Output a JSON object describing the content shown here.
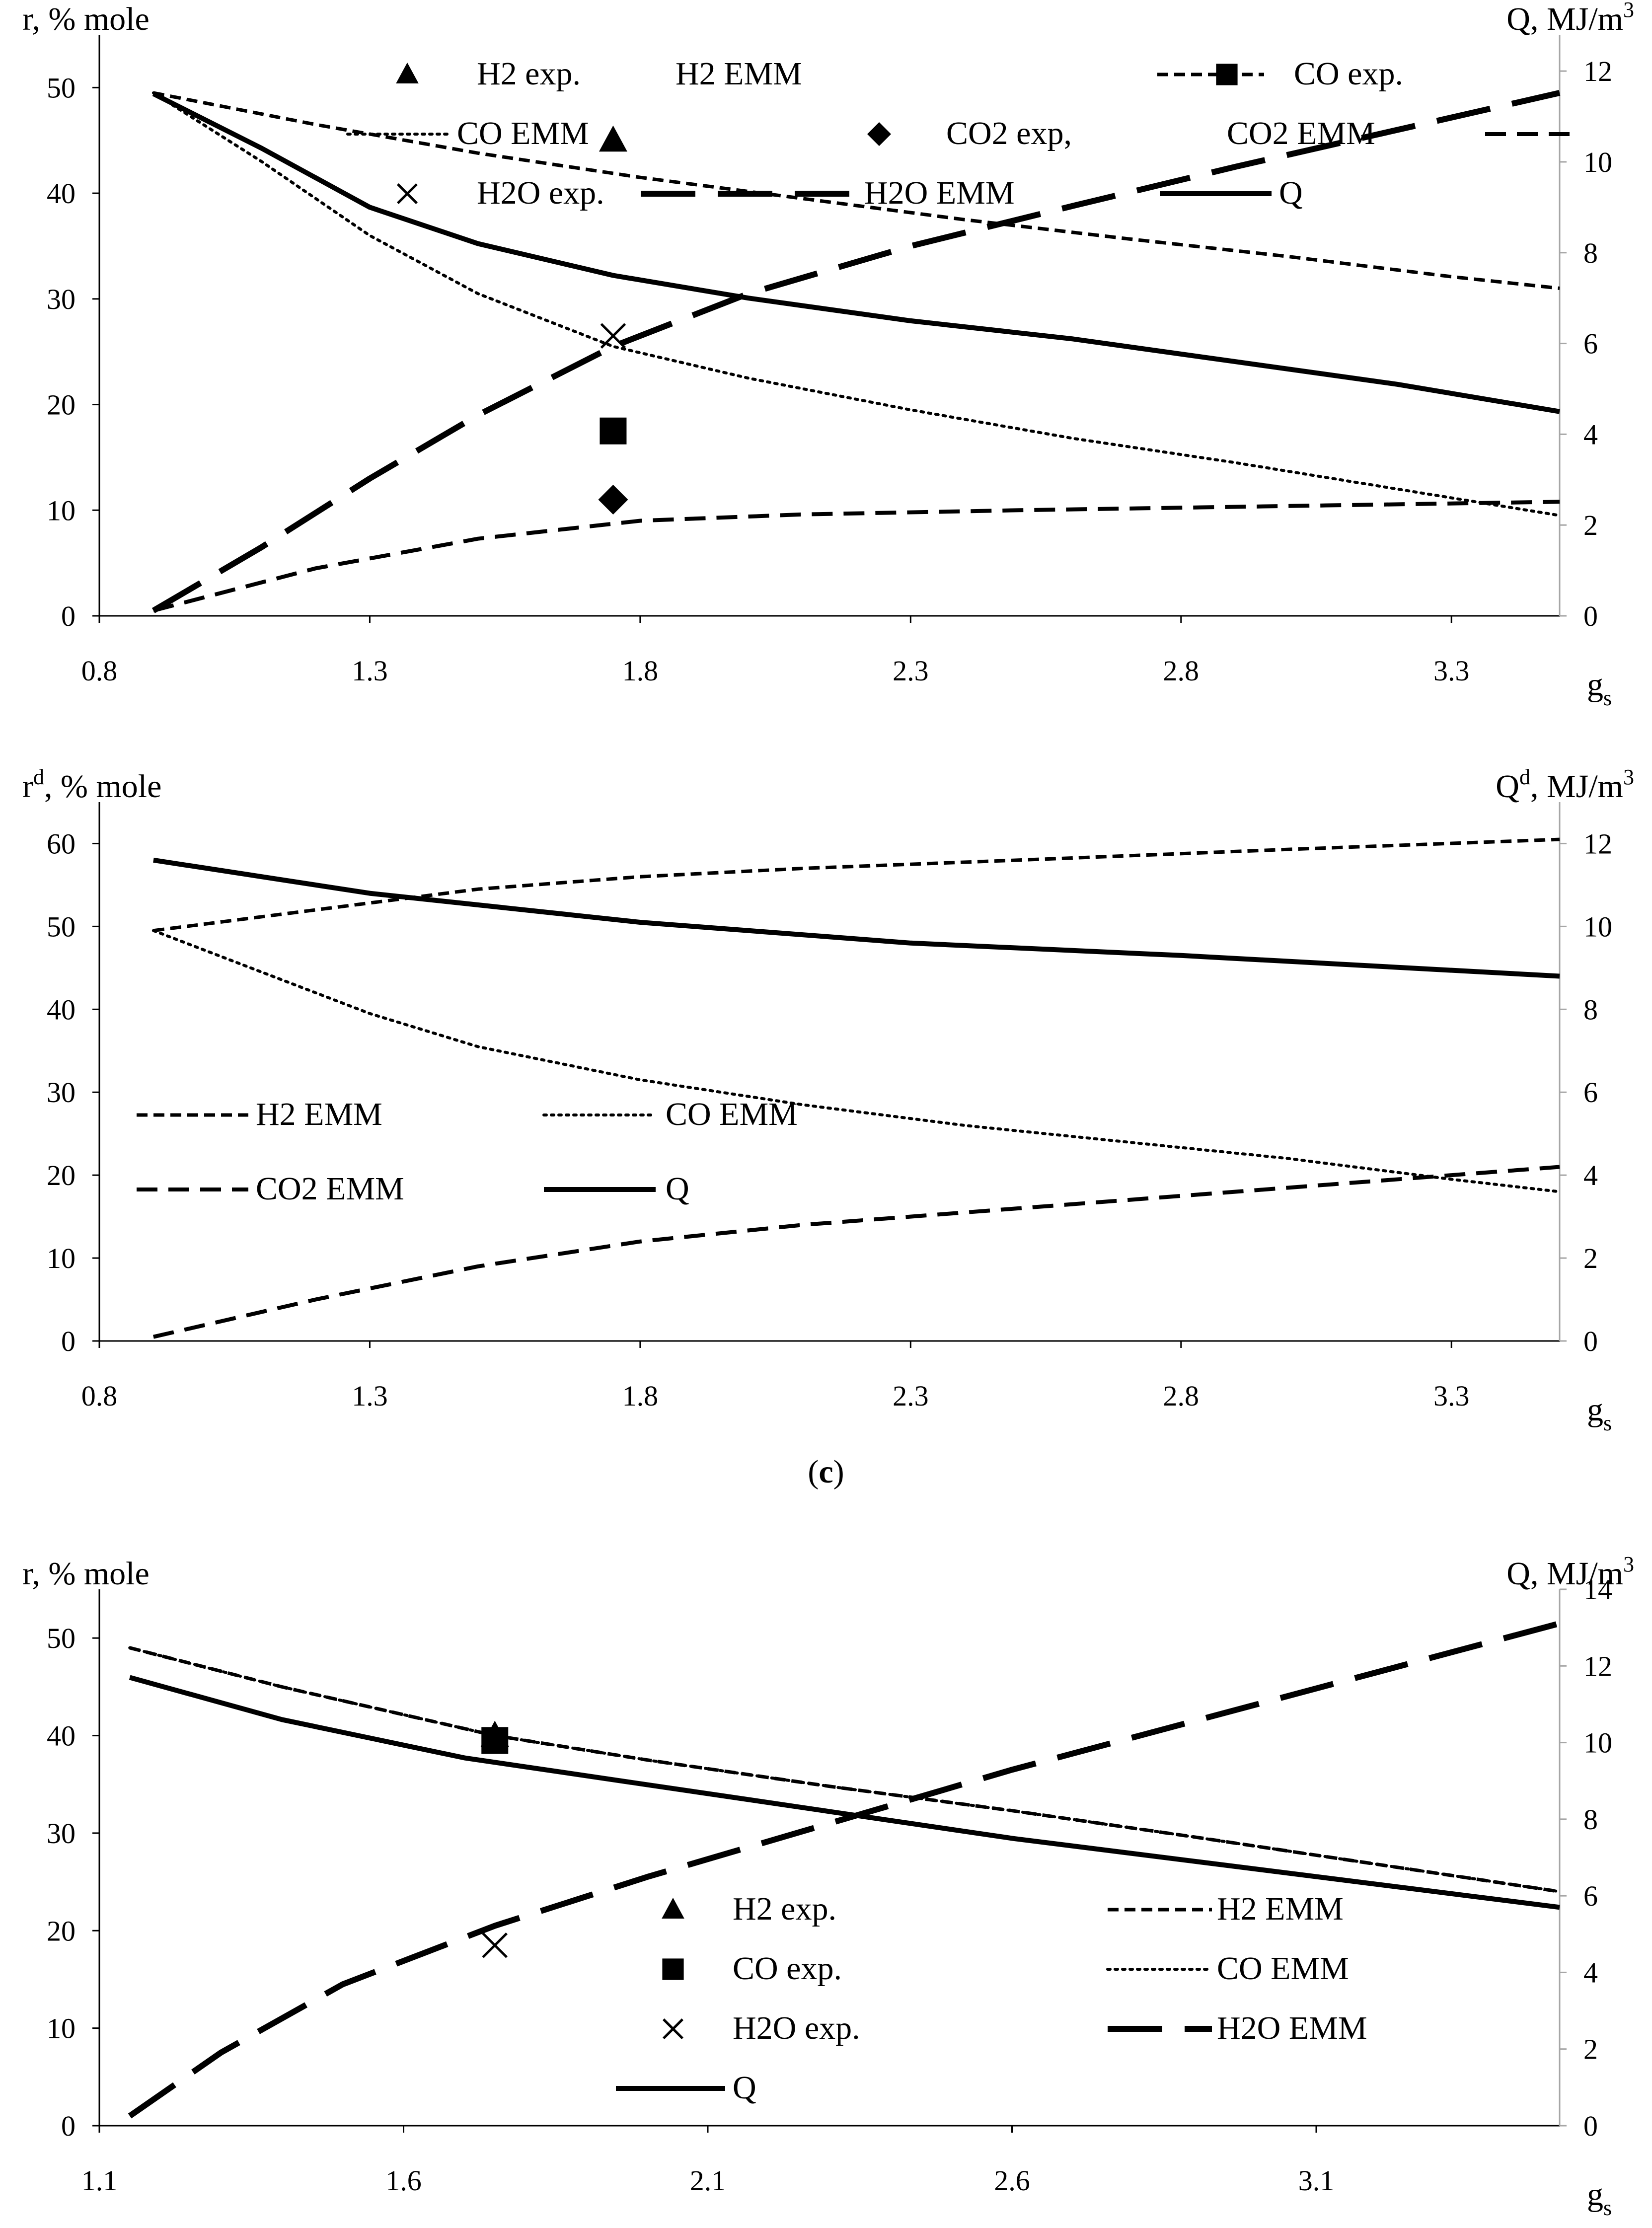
{
  "caption": {
    "open": "(",
    "letter": "c",
    "close": ")"
  },
  "chart_data": [
    {
      "type": "line",
      "id": "top",
      "xlabel": {
        "base": "g",
        "sub": "s"
      },
      "ylabel": {
        "base": "r",
        "sup": "",
        "rest": ", % mole"
      },
      "y2label": {
        "base": "Q",
        "sup": "",
        "rest": ", MJ/m",
        "sup2": "3"
      },
      "xlim": [
        0.8,
        3.5
      ],
      "ylim": [
        0,
        55
      ],
      "y2lim": [
        0,
        12.8
      ],
      "xticks": [
        "0.8",
        "1.3",
        "1.8",
        "2.3",
        "2.8",
        "3.3"
      ],
      "yticks": [
        "0",
        "10",
        "20",
        "30",
        "40",
        "50"
      ],
      "y2ticks": [
        "0",
        "2",
        "4",
        "6",
        "8",
        "10",
        "12"
      ],
      "series": [
        {
          "name": "H2 EMM",
          "style": "h2",
          "axis": "left",
          "x": [
            0.9,
            1.2,
            1.5,
            1.8,
            2.1,
            2.4,
            2.7,
            3.0,
            3.3,
            3.5
          ],
          "values": [
            49.5,
            46.5,
            43.8,
            41.5,
            39.5,
            37.5,
            35.7,
            34.0,
            32.1,
            31.0
          ]
        },
        {
          "name": "CO EMM",
          "style": "co",
          "axis": "left",
          "x": [
            0.9,
            1.1,
            1.3,
            1.5,
            1.75,
            2.0,
            2.3,
            2.6,
            2.9,
            3.2,
            3.5
          ],
          "values": [
            49.5,
            43.0,
            36.0,
            30.5,
            25.5,
            22.5,
            19.5,
            16.8,
            14.5,
            12.0,
            9.5
          ]
        },
        {
          "name": "CO2 EMM",
          "style": "co2",
          "axis": "left",
          "x": [
            0.9,
            1.2,
            1.5,
            1.8,
            2.1,
            2.5,
            3.0,
            3.5
          ],
          "values": [
            0.5,
            4.5,
            7.3,
            9.0,
            9.6,
            10.0,
            10.4,
            10.8
          ]
        },
        {
          "name": "H2O EMM",
          "style": "h2o",
          "axis": "left",
          "x": [
            0.9,
            1.1,
            1.3,
            1.5,
            1.75,
            2.0,
            2.3,
            2.6,
            2.9,
            3.2,
            3.5
          ],
          "values": [
            0.5,
            6.5,
            13.0,
            19.0,
            25.5,
            30.5,
            35.0,
            38.8,
            42.5,
            46.0,
            49.5
          ]
        },
        {
          "name": "Q",
          "style": "q",
          "axis": "right",
          "x": [
            0.9,
            1.1,
            1.3,
            1.5,
            1.75,
            2.0,
            2.3,
            2.6,
            2.9,
            3.2,
            3.5
          ],
          "values": [
            11.5,
            10.3,
            9.0,
            8.2,
            7.5,
            7.0,
            6.5,
            6.1,
            5.6,
            5.1,
            4.5
          ]
        }
      ],
      "points": [
        {
          "name": "H2 exp.",
          "marker": "triangle",
          "x": 1.75,
          "y": 45
        },
        {
          "name": "CO exp.",
          "marker": "square",
          "x": 1.75,
          "y": 17.5
        },
        {
          "name": "CO2 exp,",
          "marker": "diamond",
          "x": 1.75,
          "y": 11
        },
        {
          "name": "H2O exp.",
          "marker": "x",
          "x": 1.75,
          "y": 26.5
        }
      ],
      "legend": [
        {
          "label": "H2 exp.",
          "kind": "marker",
          "style": "triangle"
        },
        {
          "label": "H2 EMM",
          "kind": "line",
          "style": "h2"
        },
        {
          "label": "CO exp.",
          "kind": "marker",
          "style": "square"
        },
        {
          "label": "CO EMM",
          "kind": "line",
          "style": "co"
        },
        {
          "label": "CO2 exp,",
          "kind": "marker",
          "style": "diamond"
        },
        {
          "label": "CO2 EMM",
          "kind": "line",
          "style": "co2"
        },
        {
          "label": "H2O exp.",
          "kind": "marker",
          "style": "x"
        },
        {
          "label": "H2O EMM",
          "kind": "line",
          "style": "h2o"
        },
        {
          "label": "Q",
          "kind": "line",
          "style": "q"
        }
      ]
    },
    {
      "type": "line",
      "id": "middle",
      "xlabel": {
        "base": "g",
        "sub": "s"
      },
      "ylabel": {
        "base": "r",
        "sup": "d",
        "rest": ", % mole"
      },
      "y2label": {
        "base": "Q",
        "sup": "d",
        "rest": ", MJ/m",
        "sup2": "3"
      },
      "xlim": [
        0.8,
        3.5
      ],
      "ylim": [
        0,
        65
      ],
      "y2lim": [
        0,
        13
      ],
      "xticks": [
        "0.8",
        "1.3",
        "1.8",
        "2.3",
        "2.8",
        "3.3"
      ],
      "yticks": [
        "0",
        "10",
        "20",
        "30",
        "40",
        "50",
        "60"
      ],
      "y2ticks": [
        "0",
        "2",
        "4",
        "6",
        "8",
        "10",
        "12"
      ],
      "series": [
        {
          "name": "H2 EMM",
          "style": "h2",
          "axis": "left",
          "x": [
            0.9,
            1.2,
            1.5,
            1.8,
            2.1,
            2.5,
            3.0,
            3.5
          ],
          "values": [
            49.5,
            52.0,
            54.5,
            56.0,
            57.0,
            58.0,
            59.3,
            60.5
          ]
        },
        {
          "name": "CO EMM",
          "style": "co",
          "axis": "left",
          "x": [
            0.9,
            1.1,
            1.3,
            1.5,
            1.8,
            2.1,
            2.4,
            2.7,
            3.0,
            3.3,
            3.5
          ],
          "values": [
            49.5,
            44.5,
            39.5,
            35.5,
            31.5,
            28.5,
            26.0,
            24.0,
            22.0,
            19.5,
            18.0
          ]
        },
        {
          "name": "CO2 EMM",
          "style": "co2",
          "axis": "left",
          "x": [
            0.9,
            1.2,
            1.5,
            1.8,
            2.1,
            2.5,
            3.0,
            3.5
          ],
          "values": [
            0.5,
            5.0,
            9.0,
            12.0,
            14.0,
            16.0,
            18.5,
            21.0
          ]
        },
        {
          "name": "Q",
          "style": "q",
          "axis": "right",
          "x": [
            0.9,
            1.3,
            1.8,
            2.3,
            2.8,
            3.5
          ],
          "values": [
            11.6,
            10.8,
            10.1,
            9.6,
            9.3,
            8.8
          ]
        }
      ],
      "points": [],
      "legend": [
        {
          "label": "H2 EMM",
          "kind": "line",
          "style": "h2"
        },
        {
          "label": "CO EMM",
          "kind": "line",
          "style": "co"
        },
        {
          "label": "CO2 EMM",
          "kind": "line",
          "style": "co2"
        },
        {
          "label": "Q",
          "kind": "line",
          "style": "q"
        }
      ]
    },
    {
      "type": "line",
      "id": "bottom",
      "xlabel": {
        "base": "g",
        "sub": "s"
      },
      "ylabel": {
        "base": "r",
        "sup": "",
        "rest": ", % mole"
      },
      "y2label": {
        "base": "Q",
        "sup": "",
        "rest": ", MJ/m",
        "sup2": "3"
      },
      "xlim": [
        1.1,
        3.5
      ],
      "ylim": [
        0,
        55
      ],
      "y2lim": [
        0,
        14
      ],
      "xticks": [
        "1.1",
        "1.6",
        "2.1",
        "2.6",
        "3.1"
      ],
      "yticks": [
        "0",
        "10",
        "20",
        "30",
        "40",
        "50"
      ],
      "y2ticks": [
        "0",
        "2",
        "4",
        "6",
        "8",
        "10",
        "12",
        "14"
      ],
      "series": [
        {
          "name": "H2 EMM",
          "style": "h2",
          "axis": "left",
          "x": [
            1.15,
            1.4,
            1.75,
            2.0,
            2.3,
            2.6,
            2.9,
            3.2,
            3.5
          ],
          "values": [
            49,
            45,
            40,
            37.5,
            34.8,
            32.3,
            29.6,
            26.8,
            24.0
          ]
        },
        {
          "name": "CO EMM",
          "style": "co",
          "axis": "left",
          "x": [
            1.15,
            1.4,
            1.75,
            2.0,
            2.3,
            2.6,
            2.9,
            3.2,
            3.5
          ],
          "values": [
            49,
            45,
            40,
            37.5,
            34.8,
            32.3,
            29.6,
            26.8,
            24.0
          ]
        },
        {
          "name": "H2O EMM",
          "style": "h2o",
          "axis": "left",
          "x": [
            1.15,
            1.3,
            1.5,
            1.75,
            2.0,
            2.3,
            2.6,
            2.9,
            3.2,
            3.5
          ],
          "values": [
            1.0,
            7.5,
            14.5,
            20.5,
            25.5,
            31.0,
            36.5,
            41.5,
            46.5,
            51.5
          ]
        },
        {
          "name": "Q",
          "style": "q",
          "axis": "right",
          "x": [
            1.15,
            1.4,
            1.7,
            2.0,
            2.3,
            2.6,
            2.9,
            3.2,
            3.5
          ],
          "values": [
            11.7,
            10.6,
            9.6,
            8.9,
            8.2,
            7.5,
            6.9,
            6.3,
            5.7
          ]
        }
      ],
      "points": [
        {
          "name": "H2 exp.",
          "marker": "triangle",
          "x": 1.75,
          "y": 40
        },
        {
          "name": "CO exp.",
          "marker": "square",
          "x": 1.75,
          "y": 39.5
        },
        {
          "name": "H2O exp.",
          "marker": "x",
          "x": 1.75,
          "y": 18.5
        }
      ],
      "legend": [
        {
          "label": "H2 exp.",
          "kind": "marker",
          "style": "triangle"
        },
        {
          "label": "H2 EMM",
          "kind": "line",
          "style": "h2"
        },
        {
          "label": "CO exp.",
          "kind": "marker",
          "style": "square"
        },
        {
          "label": "CO EMM",
          "kind": "line",
          "style": "co"
        },
        {
          "label": "H2O exp.",
          "kind": "marker",
          "style": "x"
        },
        {
          "label": "H2O EMM",
          "kind": "line",
          "style": "h2o"
        },
        {
          "label": "Q",
          "kind": "line",
          "style": "q"
        }
      ]
    }
  ]
}
